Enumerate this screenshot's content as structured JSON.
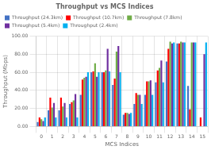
{
  "chart_data": {
    "type": "bar",
    "title": "Throughput vs MCS Indices",
    "x_label": "MCS Indices",
    "y_label": "Throughput (Mbps)",
    "categories": [
      0,
      1,
      2,
      3,
      4,
      5,
      6,
      7,
      8,
      9,
      10,
      11,
      12,
      13,
      14,
      15
    ],
    "series": [
      {
        "name": "Throughput (24.3km)",
        "color": "#4472C4",
        "values": [
          5,
          18,
          18,
          25,
          35,
          60,
          60,
          46,
          13,
          25,
          35,
          49,
          72,
          92,
          45,
          0
        ]
      },
      {
        "name": "Throughput (10.7km)",
        "color": "#FF0000",
        "values": [
          10,
          32,
          32,
          27,
          52,
          61,
          60,
          53,
          15,
          37,
          50,
          62,
          86,
          92,
          19,
          10
        ]
      },
      {
        "name": "Throughput (7.8km)",
        "color": "#70AD47",
        "values": [
          8,
          21,
          22,
          29,
          54,
          70,
          62,
          83,
          15,
          35,
          50,
          65,
          94,
          94,
          93,
          0
        ]
      },
      {
        "name": "Throughput (5.4km)",
        "color": "#7030A0",
        "values": [
          6,
          26,
          26,
          36,
          55,
          55,
          86,
          89,
          14,
          35,
          51,
          73,
          92,
          93,
          93,
          80
        ]
      },
      {
        "name": "Throughput (2.4km)",
        "color": "#00B0F0",
        "values": [
          10,
          10,
          10,
          10,
          60,
          60,
          61,
          60,
          15,
          25,
          35,
          49,
          93,
          93,
          93,
          93
        ]
      }
    ],
    "ylim": [
      0,
      100
    ],
    "yticks": [
      {
        "value": 0,
        "label": "0.00"
      },
      {
        "value": 20,
        "label": "20.00"
      },
      {
        "value": 40,
        "label": "40.00"
      },
      {
        "value": 60,
        "label": "60.00"
      },
      {
        "value": 80,
        "label": "80.00"
      },
      {
        "value": 100,
        "label": "100.00"
      }
    ],
    "grid": true,
    "legend": "upper left"
  }
}
